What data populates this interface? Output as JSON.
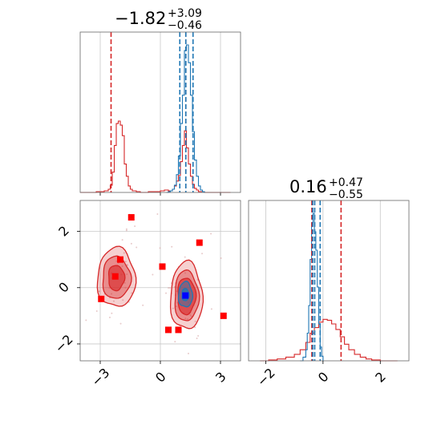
{
  "chart_data": [
    {
      "type": "histogram",
      "panel": "top-left",
      "title": {
        "main": "−1.82",
        "plus": "+3.09",
        "minus": "−0.46"
      },
      "xlim": [
        -4.0,
        4.0
      ],
      "grid": true,
      "series": [
        {
          "color": "#d62728",
          "x": [
            -4.0,
            -3.8,
            -3.6,
            -3.4,
            -3.2,
            -3.0,
            -2.8,
            -2.6,
            -2.5,
            -2.4,
            -2.3,
            -2.2,
            -2.1,
            -2.0,
            -1.9,
            -1.8,
            -1.7,
            -1.6,
            -1.5,
            -1.4,
            -1.2,
            -1.0,
            -0.6,
            -0.3,
            0.0,
            0.2,
            0.4,
            0.6,
            0.7,
            0.8,
            0.9,
            1.0,
            1.1,
            1.2,
            1.3,
            1.4,
            1.5,
            1.6,
            1.7,
            1.8,
            1.9,
            2.0,
            2.2,
            2.4,
            2.6,
            3.0,
            3.5
          ],
          "values": [
            0,
            0,
            0,
            0,
            1,
            1,
            2,
            4,
            9,
            25,
            58,
            85,
            88,
            83,
            70,
            35,
            20,
            8,
            4,
            2,
            1,
            0,
            1,
            1,
            2,
            3,
            2,
            4,
            8,
            14,
            21,
            38,
            58,
            76,
            55,
            35,
            20,
            10,
            5,
            3,
            1,
            1,
            0,
            0,
            0,
            0,
            0
          ]
        },
        {
          "color": "#1f77b4",
          "x": [
            0.3,
            0.4,
            0.5,
            0.6,
            0.7,
            0.8,
            0.9,
            1.0,
            1.1,
            1.2,
            1.3,
            1.4,
            1.5,
            1.6,
            1.7,
            1.8,
            1.9,
            2.0,
            2.1,
            2.2
          ],
          "values": [
            0,
            1,
            2,
            4,
            9,
            22,
            45,
            85,
            120,
            175,
            182,
            160,
            120,
            75,
            40,
            20,
            8,
            3,
            1,
            0
          ]
        }
      ],
      "vlines": [
        {
          "x": -2.46,
          "color": "#d62728"
        },
        {
          "x": 0.97,
          "color": "#1f77b4"
        },
        {
          "x": 1.27,
          "color": "#d62728"
        },
        {
          "x": 1.27,
          "color": "#1f77b4"
        },
        {
          "x": 1.63,
          "color": "#1f77b4"
        }
      ]
    },
    {
      "type": "contour",
      "panel": "bottom-left",
      "xlim": [
        -4.0,
        4.0
      ],
      "ylim": [
        -2.6,
        3.1
      ],
      "xticks": [
        "−3",
        "0",
        "3"
      ],
      "yticks": [
        "−2",
        "0",
        "2"
      ],
      "grid": true,
      "blobs": [
        {
          "color": "#d62728",
          "cx": -2.2,
          "cy": 0.35,
          "levels": [
            [
              0.95,
              1.05
            ],
            [
              0.7,
              0.75
            ],
            [
              0.4,
              0.45
            ]
          ]
        },
        {
          "color": "#d62728",
          "cx": 1.3,
          "cy": -0.3,
          "levels": [
            [
              0.8,
              1.2
            ],
            [
              0.6,
              0.9
            ],
            [
              0.45,
              0.65
            ]
          ]
        },
        {
          "color": "#1f77b4",
          "cx": 1.25,
          "cy": -0.25,
          "levels": [
            [
              0.35,
              0.45
            ],
            [
              0.18,
              0.22
            ]
          ]
        }
      ],
      "red_squares": [
        [
          -1.45,
          2.5
        ],
        [
          -2.0,
          1.0
        ],
        [
          -2.25,
          0.4
        ],
        [
          -2.95,
          -0.4
        ],
        [
          0.1,
          0.75
        ],
        [
          0.4,
          -1.5
        ],
        [
          0.9,
          -1.5
        ],
        [
          1.95,
          1.6
        ],
        [
          3.15,
          -1.0
        ]
      ],
      "blue_square": [
        1.25,
        -0.28
      ]
    },
    {
      "type": "histogram",
      "panel": "bottom-right",
      "title": {
        "main": "0.16",
        "plus": "+0.47",
        "minus": "−0.55"
      },
      "xlim": [
        -2.6,
        3.0
      ],
      "xticks": [
        "−2",
        "0",
        "2"
      ],
      "grid": true,
      "series": [
        {
          "color": "#d62728",
          "x": [
            -2.2,
            -1.9,
            -1.6,
            -1.3,
            -1.0,
            -0.8,
            -0.6,
            -0.45,
            -0.3,
            -0.15,
            0.0,
            0.15,
            0.3,
            0.45,
            0.6,
            0.75,
            0.9,
            1.1,
            1.3,
            1.5,
            1.7,
            2.0,
            2.3,
            2.6
          ],
          "values": [
            0,
            1,
            2,
            4,
            7,
            12,
            20,
            30,
            36,
            42,
            45,
            44,
            40,
            34,
            26,
            18,
            12,
            7,
            4,
            2,
            1,
            0,
            0,
            0
          ]
        },
        {
          "color": "#1f77b4",
          "x": [
            -0.8,
            -0.7,
            -0.6,
            -0.55,
            -0.5,
            -0.45,
            -0.4,
            -0.35,
            -0.3,
            -0.25,
            -0.2,
            -0.15,
            -0.1,
            -0.05,
            0.0
          ],
          "values": [
            0,
            4,
            12,
            30,
            60,
            110,
            150,
            160,
            140,
            120,
            80,
            40,
            15,
            5,
            0
          ]
        }
      ],
      "vlines": [
        {
          "x": -0.39,
          "color": "#d62728"
        },
        {
          "x": -0.36,
          "color": "#1f77b4"
        },
        {
          "x": -0.29,
          "color": "#1f77b4"
        },
        {
          "x": -0.1,
          "color": "#1f77b4"
        },
        {
          "x": 0.63,
          "color": "#d62728"
        }
      ]
    }
  ]
}
